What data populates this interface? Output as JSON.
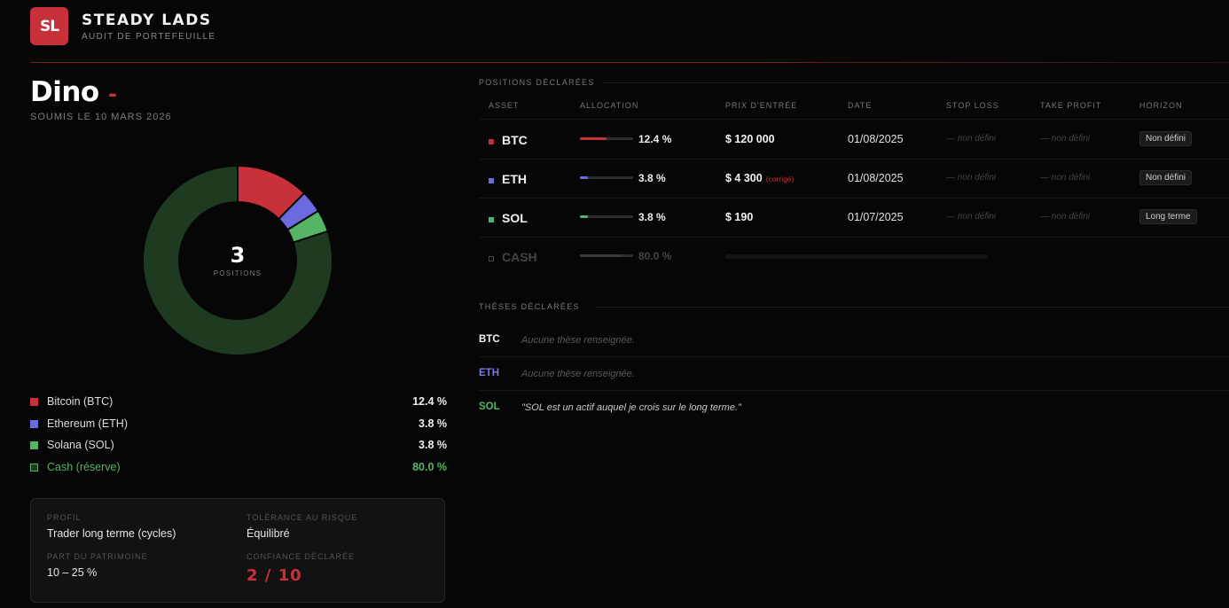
{
  "brand": {
    "logo": "SL",
    "name": "STEADY LADS",
    "subtitle": "AUDIT DE PORTEFEUILLE"
  },
  "client": {
    "name": "Dino",
    "suffix": "-",
    "submitted": "SOUMIS LE 10 MARS 2026"
  },
  "donut": {
    "count": "3",
    "label": "POSITIONS",
    "segments": [
      {
        "name": "BTC",
        "percent": 12.4,
        "color": "#c9313a"
      },
      {
        "name": "ETH",
        "percent": 3.8,
        "color": "#6b6be0"
      },
      {
        "name": "SOL",
        "percent": 3.8,
        "color": "#55b466"
      },
      {
        "name": "CASH",
        "percent": 80.0,
        "color": "#1e3b22"
      }
    ]
  },
  "legend": [
    {
      "name": "Bitcoin (BTC)",
      "value": "12.4 %",
      "color": "#c9313a"
    },
    {
      "name": "Ethereum (ETH)",
      "value": "3.8 %",
      "color": "#6b6be0"
    },
    {
      "name": "Solana (SOL)",
      "value": "3.8 %",
      "color": "#55b466"
    },
    {
      "name": "Cash (réserve)",
      "value": "80.0 %",
      "color": "#1e3b22"
    }
  ],
  "profile": {
    "profil_label": "PROFIL",
    "profil_value": "Trader long terme (cycles)",
    "tolerance_label": "TOLÉRANCE AU RISQUE",
    "tolerance_value": "Équilibré",
    "part_label": "PART DU PATRIMOINE",
    "part_value": "10 – 25 %",
    "confiance_label": "CONFIANCE DÉCLARÉE",
    "confiance_value": "2 / 10"
  },
  "positions": {
    "title": "POSITIONS DÉCLARÉES",
    "headers": {
      "asset": "ASSET",
      "allocation": "ALLOCATION",
      "entry": "PRIX D'ENTRÉE",
      "date": "DATE",
      "stop": "STOP LOSS",
      "take": "TAKE PROFIT",
      "horizon": "HORIZON"
    },
    "rows": [
      {
        "asset": "BTC",
        "color": "#c9313a",
        "allocation": 12.4,
        "pct": "12.4 %",
        "entry": "$ 120 000",
        "entry_note": "",
        "date": "01/08/2025",
        "stop": "— non défini",
        "take": "— non défini",
        "horizon": "Non défini"
      },
      {
        "asset": "ETH",
        "color": "#6b6be0",
        "allocation": 3.8,
        "pct": "3.8 %",
        "entry": "$ 4 300",
        "entry_note": "(corrigé)",
        "date": "01/08/2025",
        "stop": "— non défini",
        "take": "— non défini",
        "horizon": "Non défini"
      },
      {
        "asset": "SOL",
        "color": "#55b466",
        "allocation": 3.8,
        "pct": "3.8 %",
        "entry": "$ 190",
        "entry_note": "",
        "date": "01/07/2025",
        "stop": "— non défini",
        "take": "— non défini",
        "horizon": "Long terme"
      }
    ],
    "cash": {
      "asset": "CASH",
      "pct": "80.0 %"
    }
  },
  "theses": {
    "title": "THÈSES DÉCLARÉES",
    "rows": [
      {
        "ticker": "BTC",
        "color": "#f2f2f2",
        "text": "Aucune thèse renseignée."
      },
      {
        "ticker": "ETH",
        "color": "#7a7ae6",
        "text": "Aucune thèse renseignée."
      },
      {
        "ticker": "SOL",
        "color": "#55b466",
        "text": "\"SOL est un actif auquel je crois sur le long terme.\""
      }
    ]
  }
}
